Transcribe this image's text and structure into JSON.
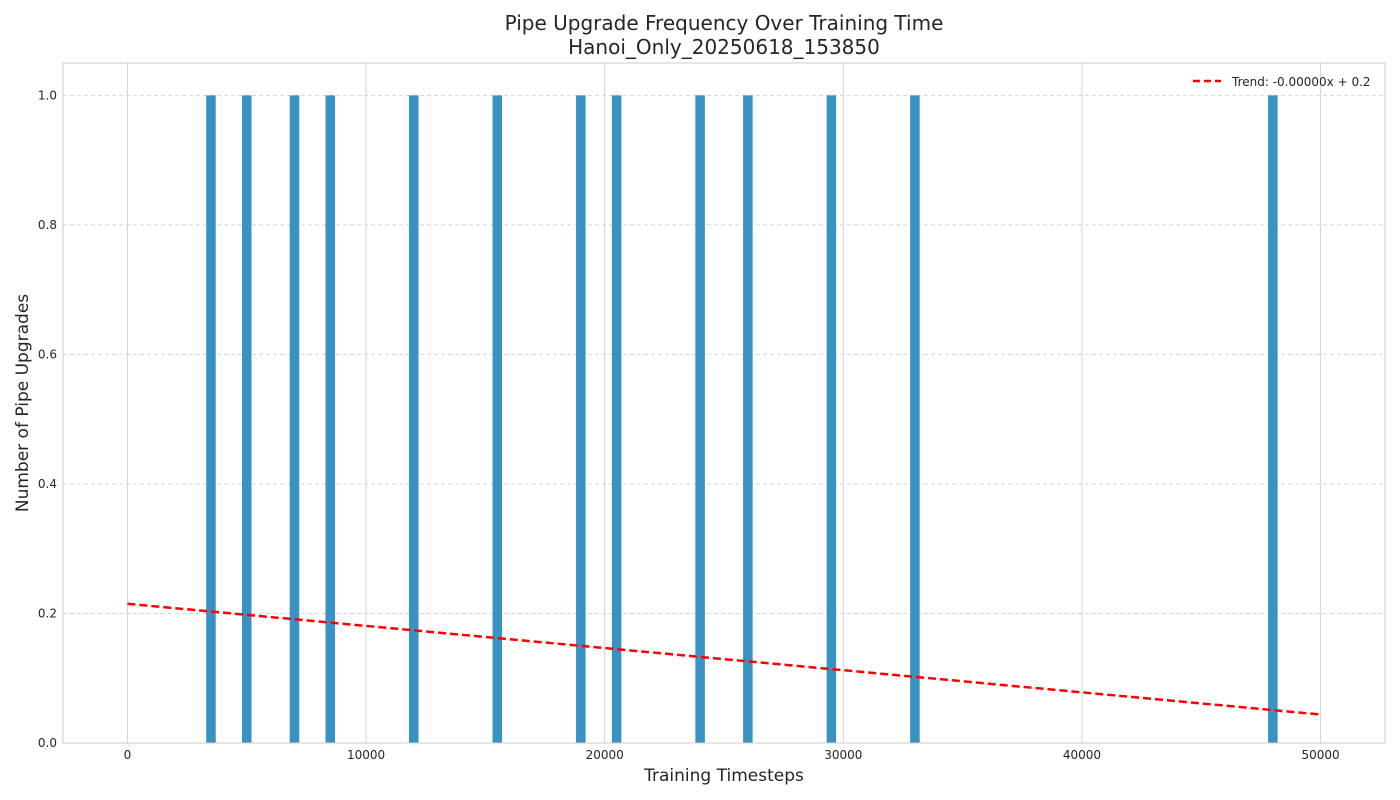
{
  "chart_data": {
    "type": "bar",
    "title": "Pipe Upgrade Frequency Over Training Time",
    "subtitle": "Hanoi_Only_20250618_153850",
    "xlabel": "Training Timesteps",
    "ylabel": "Number of Pipe Upgrades",
    "xlim": [
      -2700,
      52700
    ],
    "ylim": [
      0,
      1.05
    ],
    "xticks": [
      0,
      10000,
      20000,
      30000,
      40000,
      50000
    ],
    "xtick_labels": [
      "0",
      "10000",
      "20000",
      "30000",
      "40000",
      "50000"
    ],
    "yticks": [
      0.0,
      0.2,
      0.4,
      0.6,
      0.8,
      1.0
    ],
    "ytick_labels": [
      "0.0",
      "0.2",
      "0.4",
      "0.6",
      "0.8",
      "1.0"
    ],
    "bar_width": 400,
    "bars": {
      "x": [
        3500,
        5000,
        7000,
        8500,
        12000,
        15500,
        19000,
        20500,
        24000,
        26000,
        29500,
        33000,
        48000
      ],
      "values": [
        1,
        1,
        1,
        1,
        1,
        1,
        1,
        1,
        1,
        1,
        1,
        1,
        1
      ],
      "color": "#3a92c3"
    },
    "trend": {
      "name": "Trend: -0.00000x + 0.2",
      "x": [
        0,
        50000
      ],
      "y": [
        0.215,
        0.044
      ],
      "color": "#ff0000",
      "style": "dashed"
    },
    "grid": true,
    "legend_position": "top-right"
  }
}
